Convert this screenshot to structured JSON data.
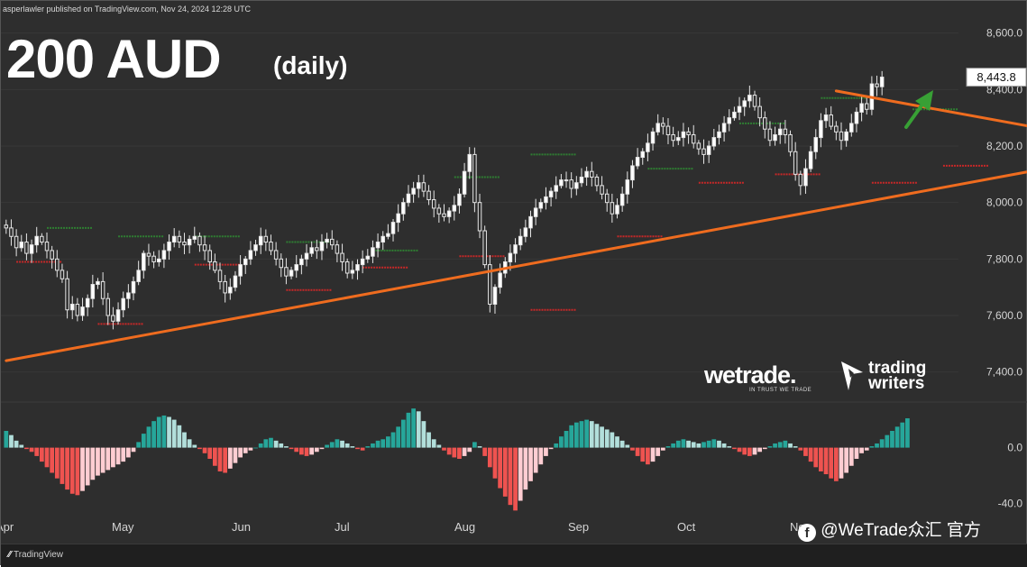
{
  "header": {
    "published_by": "asperlawler published on TradingView.com, Nov 24, 2024 12:28 UTC",
    "title": "200 AUD",
    "subtitle": "(daily)"
  },
  "brand": {
    "wetrade": "wetrade.",
    "wetrade_tagline": "IN TRUST WE TRADE",
    "trading_writers_line1": "trading",
    "trading_writers_line2": "writers",
    "tradingview": "TradingView",
    "social_watermark": "@WeTrade众汇 官方"
  },
  "colors": {
    "background": "#2e2e2e",
    "candle": "#e6e6e6",
    "trendline": "#ef6c1f",
    "arrow": "#38a035",
    "hist_pos_strong": "#26a69a",
    "hist_pos_weak": "#b2dfdb",
    "hist_neg_strong": "#ef5350",
    "hist_neg_weak": "#ffcdd2",
    "resistance_marker": "#2e7d32",
    "support_marker": "#c62828"
  },
  "chart_data": [
    {
      "type": "candlestick",
      "title": "200 AUD",
      "subtitle": "(daily)",
      "y_axis_side": "right",
      "ylim": [
        7300,
        8650
      ],
      "y_ticks": [
        8600,
        8400,
        8200,
        8000,
        7800,
        7600,
        7400
      ],
      "y_tick_labels": [
        "8,600.0",
        "8,400.0",
        "8,200.0",
        "8,000.0",
        "7,800.0",
        "7,600.0",
        "7,400.0"
      ],
      "last_price": 8443.8,
      "last_price_label": "8,443.8",
      "x_ticks": [
        "Apr",
        "May",
        "Jun",
        "Jul",
        "Aug",
        "Sep",
        "Oct",
        "Nov"
      ],
      "closes": [
        7910,
        7880,
        7840,
        7860,
        7820,
        7850,
        7880,
        7860,
        7830,
        7800,
        7760,
        7730,
        7620,
        7640,
        7600,
        7630,
        7660,
        7710,
        7720,
        7660,
        7600,
        7580,
        7620,
        7660,
        7680,
        7720,
        7760,
        7820,
        7810,
        7790,
        7800,
        7830,
        7860,
        7880,
        7860,
        7850,
        7870,
        7880,
        7850,
        7830,
        7790,
        7760,
        7720,
        7680,
        7700,
        7740,
        7780,
        7800,
        7830,
        7850,
        7880,
        7860,
        7830,
        7800,
        7770,
        7740,
        7760,
        7780,
        7800,
        7820,
        7840,
        7830,
        7860,
        7870,
        7850,
        7820,
        7790,
        7750,
        7760,
        7780,
        7800,
        7810,
        7840,
        7860,
        7880,
        7890,
        7930,
        7960,
        8000,
        8030,
        8050,
        8070,
        8040,
        8010,
        7980,
        7960,
        7950,
        7970,
        7990,
        8030,
        8110,
        8170,
        8000,
        7900,
        7780,
        7640,
        7700,
        7750,
        7790,
        7820,
        7850,
        7880,
        7910,
        7950,
        7980,
        8000,
        8020,
        8040,
        8060,
        8080,
        8080,
        8050,
        8070,
        8090,
        8110,
        8090,
        8060,
        8030,
        8000,
        7960,
        7990,
        8030,
        8080,
        8130,
        8160,
        8180,
        8210,
        8250,
        8280,
        8270,
        8240,
        8220,
        8230,
        8250,
        8240,
        8210,
        8190,
        8170,
        8200,
        8230,
        8250,
        8280,
        8300,
        8320,
        8340,
        8360,
        8380,
        8340,
        8300,
        8260,
        8220,
        8240,
        8260,
        8240,
        8180,
        8100,
        8060,
        8120,
        8180,
        8230,
        8290,
        8310,
        8270,
        8250,
        8220,
        8250,
        8280,
        8320,
        8350,
        8330,
        8420,
        8410,
        8444
      ],
      "volatility": 40,
      "resistance_markers": [
        [
          8,
          7910
        ],
        [
          22,
          7880
        ],
        [
          37,
          7880
        ],
        [
          55,
          7860
        ],
        [
          72,
          7830
        ],
        [
          88,
          8090
        ],
        [
          103,
          8170
        ],
        [
          126,
          8120
        ],
        [
          144,
          8280
        ],
        [
          160,
          8370
        ],
        [
          178,
          8330
        ]
      ],
      "support_markers": [
        [
          2,
          7790
        ],
        [
          18,
          7570
        ],
        [
          37,
          7780
        ],
        [
          55,
          7690
        ],
        [
          70,
          7770
        ],
        [
          89,
          7810
        ],
        [
          103,
          7620
        ],
        [
          120,
          7880
        ],
        [
          136,
          8070
        ],
        [
          151,
          8100
        ],
        [
          170,
          8070
        ],
        [
          184,
          8130
        ]
      ],
      "trendlines": [
        {
          "from": [
            0,
            7440
          ],
          "to": [
            207,
            8130
          ],
          "label": ""
        },
        {
          "from": [
            163,
            8395
          ],
          "to": [
            207,
            8250
          ],
          "label": ""
        }
      ]
    },
    {
      "type": "histogram",
      "ylim": [
        -48,
        32
      ],
      "y_ticks": [
        0,
        -40
      ],
      "y_tick_labels": [
        "0.0",
        "-40.0"
      ],
      "values": [
        12,
        9,
        5,
        2,
        -1,
        -3,
        -6,
        -10,
        -14,
        -18,
        -22,
        -26,
        -30,
        -33,
        -34,
        -31,
        -27,
        -23,
        -20,
        -18,
        -16,
        -14,
        -12,
        -10,
        -7,
        -3,
        4,
        10,
        15,
        19,
        22,
        23,
        22,
        20,
        16,
        11,
        6,
        2,
        -1,
        -4,
        -8,
        -13,
        -17,
        -18,
        -15,
        -11,
        -7,
        -4,
        -2,
        0,
        3,
        6,
        7,
        5,
        3,
        1,
        -1,
        -3,
        -5,
        -6,
        -5,
        -3,
        -1,
        2,
        4,
        6,
        5,
        3,
        1,
        -1,
        -2,
        1,
        3,
        5,
        6,
        8,
        11,
        15,
        20,
        25,
        28,
        26,
        19,
        11,
        6,
        2,
        -2,
        -5,
        -7,
        -8,
        -6,
        -3,
        4,
        1,
        -6,
        -14,
        -22,
        -29,
        -35,
        -41,
        -45,
        -38,
        -30,
        -24,
        -18,
        -12,
        -6,
        -1,
        3,
        8,
        12,
        16,
        18,
        19,
        20,
        19,
        17,
        15,
        13,
        11,
        8,
        5,
        2,
        -2,
        -6,
        -10,
        -12,
        -10,
        -6,
        -2,
        1,
        3,
        5,
        6,
        5,
        4,
        3,
        4,
        5,
        6,
        5,
        3,
        1,
        -1,
        -3,
        -5,
        -6,
        -5,
        -3,
        -1,
        1,
        3,
        4,
        5,
        3,
        1,
        -2,
        -6,
        -10,
        -14,
        -17,
        -19,
        -22,
        -24,
        -22,
        -18,
        -13,
        -8,
        -4,
        -2,
        1,
        3,
        6,
        9,
        12,
        15,
        18,
        21
      ]
    }
  ]
}
